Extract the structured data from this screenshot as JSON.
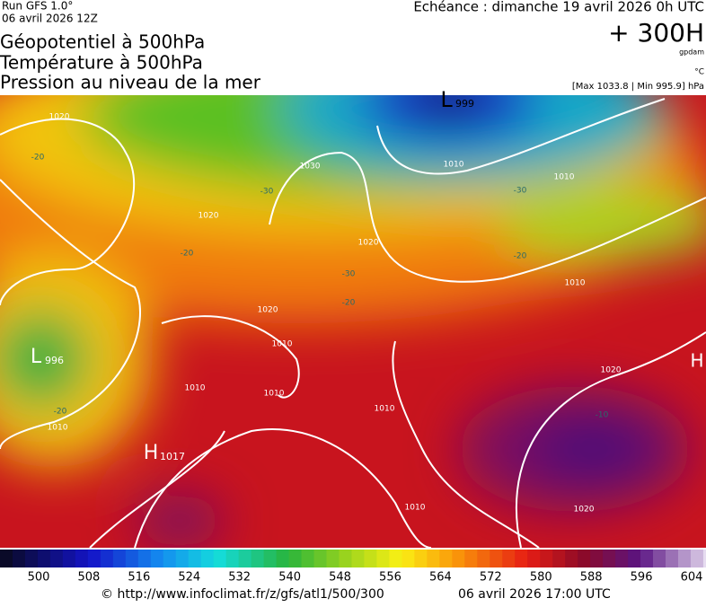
{
  "header": {
    "run": "Run GFS 1.0°",
    "run_date": "06 avril 2026 12Z",
    "titles": [
      "Géopotentiel à 500hPa",
      "Température à 500hPa",
      "Pression au niveau de la mer"
    ],
    "echeance": "Echéance : dimanche 19 avril 2026 0h UTC",
    "lead": "+ 300H",
    "unit_geo": "gpdam",
    "unit_temp": "°C",
    "pressure_range": "[Max 1033.8 | Min 995.9] hPa"
  },
  "map": {
    "centers": [
      {
        "letter": "L",
        "value": 999
      },
      {
        "letter": "L",
        "value": 996
      },
      {
        "letter": "H",
        "value": 1017
      },
      {
        "letter": "H"
      }
    ],
    "isobar_labels": [
      1020,
      1030,
      1020,
      1020,
      1010,
      1010,
      1020,
      1010,
      1010,
      1010,
      1010,
      1010,
      1010,
      1020,
      1020,
      1010
    ],
    "temperature_labels": [
      -20,
      -30,
      -20,
      -30,
      -20,
      -30,
      -20,
      -20,
      -10
    ]
  },
  "scale": {
    "labels": [
      500,
      508,
      516,
      524,
      532,
      540,
      548,
      556,
      564,
      572,
      580,
      588,
      596,
      604
    ]
  },
  "footer": {
    "url": "© http://www.infoclimat.fr/z/gfs/atl1/500/300",
    "issued": "06 avril 2026 17:00 UTC"
  }
}
